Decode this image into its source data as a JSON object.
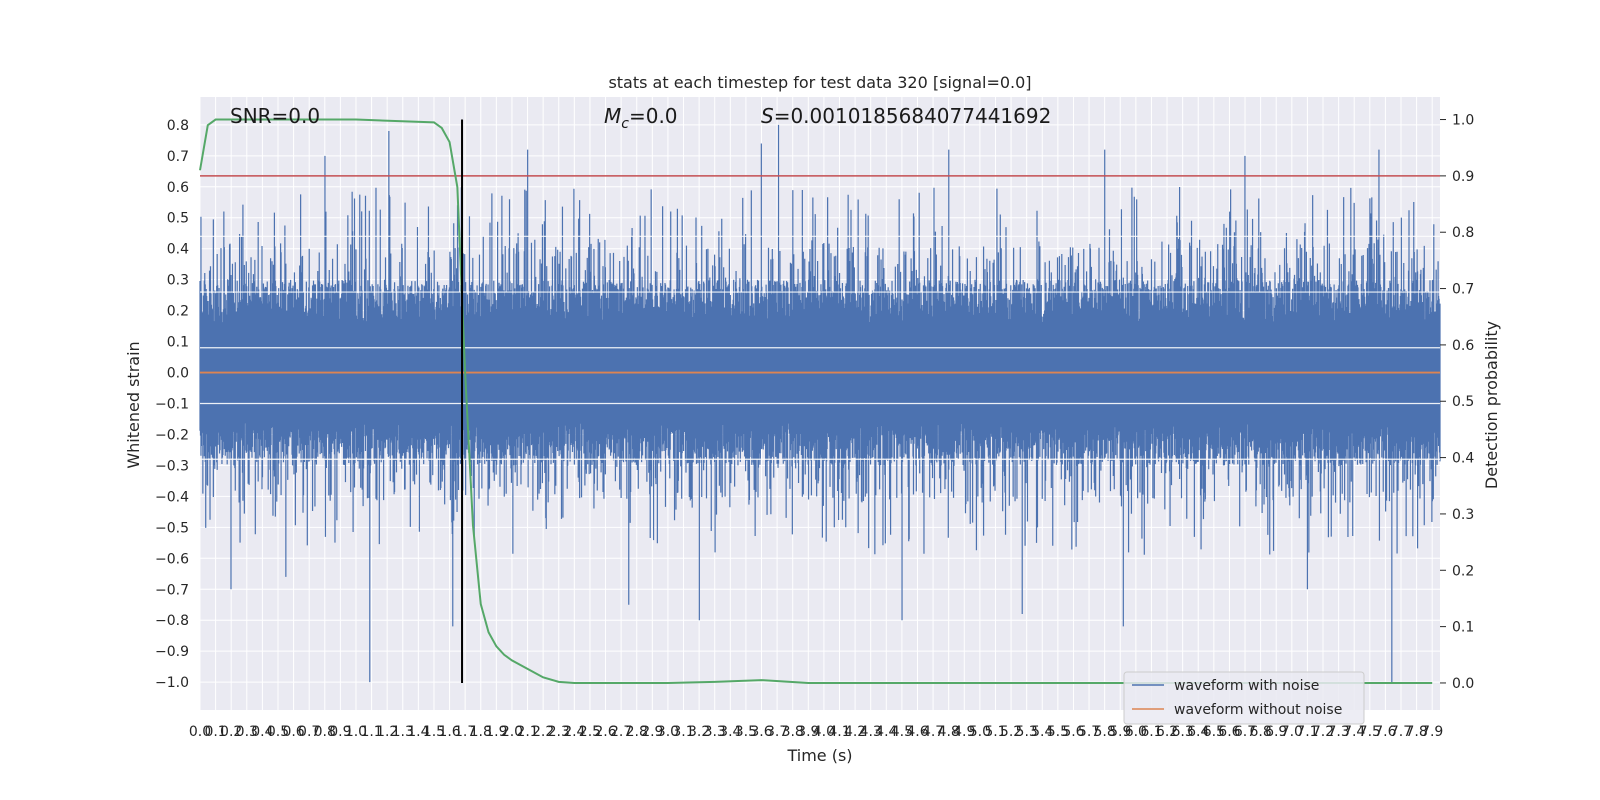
{
  "chart_data": {
    "type": "line",
    "title": "stats at each timestep for test data 320 [signal=0.0]",
    "xlabel": "Time (s)",
    "ylabel": "Whitened strain",
    "y2label": "Detection probability",
    "xlim": [
      0.0,
      7.95
    ],
    "ylim": [
      -1.09,
      0.89
    ],
    "y2lim": [
      -0.048,
      1.04
    ],
    "grid": true,
    "legend_position": "lower-right",
    "x_ticks": [
      "0.0",
      "0.1",
      "0.2",
      "0.3",
      "0.4",
      "0.5",
      "0.6",
      "0.7",
      "0.8",
      "0.9",
      "1.0",
      "1.1",
      "1.2",
      "1.3",
      "1.4",
      "1.5",
      "1.6",
      "1.7",
      "1.8",
      "1.9",
      "2.0",
      "2.1",
      "2.2",
      "2.3",
      "2.4",
      "2.5",
      "2.6",
      "2.7",
      "2.8",
      "2.9",
      "3.0",
      "3.1",
      "3.2",
      "3.3",
      "3.4",
      "3.5",
      "3.6",
      "3.7",
      "3.8",
      "3.9",
      "4.0",
      "4.1",
      "4.2",
      "4.3",
      "4.4",
      "4.5",
      "4.6",
      "4.7",
      "4.8",
      "4.9",
      "5.0",
      "5.1",
      "5.2",
      "5.3",
      "5.4",
      "5.5",
      "5.6",
      "5.7",
      "5.8",
      "5.9",
      "6.0",
      "6.1",
      "6.2",
      "6.3",
      "6.4",
      "6.5",
      "6.6",
      "6.7",
      "6.8",
      "6.9",
      "7.0",
      "7.1",
      "7.2",
      "7.3",
      "7.4",
      "7.5",
      "7.6",
      "7.7",
      "7.8",
      "7.9"
    ],
    "y_ticks": [
      "0.8",
      "0.7",
      "0.6",
      "0.5",
      "0.4",
      "0.3",
      "0.2",
      "0.1",
      "0.0",
      "−0.1",
      "−0.2",
      "−0.3",
      "−0.4",
      "−0.5",
      "−0.6",
      "−0.7",
      "−0.8",
      "−0.9",
      "−1.0"
    ],
    "y2_ticks": [
      "1.0",
      "0.9",
      "0.8",
      "0.7",
      "0.6",
      "0.5",
      "0.4",
      "0.3",
      "0.2",
      "0.1",
      "0.0"
    ],
    "annotations": {
      "snr": "SNR=0.0",
      "mc_symbol": "M",
      "mc_sub": "c",
      "mc_value": "=0.0",
      "s_symbol": "S",
      "s_value": "=0.0010185684077441692"
    },
    "threshold": 0.9,
    "marker_time": 1.68,
    "series": [
      {
        "name": "waveform with noise",
        "color": "#4c72b0",
        "axis": "left",
        "envelope_min": -0.47,
        "envelope_max": 0.44,
        "spikes": [
          {
            "x": 1.09,
            "y": -1.0
          },
          {
            "x": 1.21,
            "y": 0.78
          },
          {
            "x": 1.62,
            "y": -0.82
          },
          {
            "x": 3.71,
            "y": 0.8
          },
          {
            "x": 3.6,
            "y": 0.74
          },
          {
            "x": 2.1,
            "y": 0.72
          },
          {
            "x": 4.5,
            "y": -0.8
          },
          {
            "x": 5.27,
            "y": -0.78
          },
          {
            "x": 5.8,
            "y": 0.72
          },
          {
            "x": 5.92,
            "y": -0.82
          },
          {
            "x": 7.56,
            "y": 0.72
          },
          {
            "x": 7.64,
            "y": -1.0
          },
          {
            "x": 2.75,
            "y": -0.75
          },
          {
            "x": 3.2,
            "y": -0.8
          },
          {
            "x": 0.2,
            "y": -0.7
          },
          {
            "x": 0.55,
            "y": -0.66
          },
          {
            "x": 0.8,
            "y": 0.7
          },
          {
            "x": 4.8,
            "y": 0.72
          },
          {
            "x": 6.7,
            "y": 0.7
          },
          {
            "x": 7.1,
            "y": -0.7
          }
        ]
      },
      {
        "name": "waveform without noise",
        "color": "#dd8452",
        "axis": "left",
        "x": [
          0.0,
          7.95
        ],
        "y": [
          0.0,
          0.0
        ]
      },
      {
        "name": "detection probability",
        "color": "#55a868",
        "axis": "right",
        "x": [
          0.0,
          0.05,
          0.1,
          0.2,
          0.5,
          1.0,
          1.5,
          1.55,
          1.6,
          1.65,
          1.7,
          1.75,
          1.8,
          1.85,
          1.9,
          1.95,
          2.0,
          2.1,
          2.2,
          2.3,
          2.4,
          2.5,
          2.6,
          3.0,
          3.3,
          3.6,
          3.9,
          5.0,
          7.9
        ],
        "y": [
          0.91,
          0.99,
          1.0,
          1.0,
          1.0,
          1.0,
          0.995,
          0.985,
          0.96,
          0.88,
          0.55,
          0.28,
          0.14,
          0.09,
          0.065,
          0.05,
          0.04,
          0.025,
          0.01,
          0.002,
          0.0,
          0.0,
          0.0,
          0.0,
          0.002,
          0.005,
          0.0,
          0.0,
          0.0
        ]
      },
      {
        "name": "threshold",
        "color": "#c44e52",
        "axis": "right",
        "x": [
          0.0,
          7.95
        ],
        "y": [
          0.9,
          0.9
        ]
      }
    ],
    "legend": [
      "waveform with noise",
      "waveform without noise"
    ],
    "colors": {
      "background": "#eaeaf2",
      "grid": "#ffffff",
      "marker_line": "#000000"
    }
  }
}
